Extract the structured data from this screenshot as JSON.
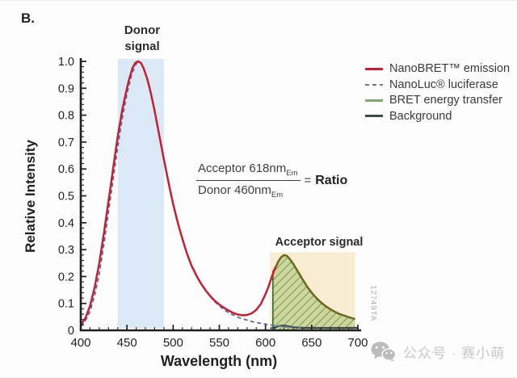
{
  "panel_label": "B.",
  "colors": {
    "axis": "#231f20",
    "emission_red": "#c32032",
    "nanoluc_dash": "#5c6d9c",
    "bret_green": "#7fa96b",
    "background_line": "#3c4a4e",
    "donor_band": "#dbe8f6",
    "acceptor_band": "#f8ecd3",
    "hatch_bg": "#ccd79f",
    "hatch_line": "#7d9747",
    "bret_outline": "#6e6c24",
    "bret_vertical": "#2f6b33"
  },
  "chart_data": {
    "type": "line",
    "xlabel": "Wavelength (nm)",
    "ylabel": "Relative Intensity",
    "xlim": [
      400,
      700
    ],
    "ylim": [
      0,
      1.0
    ],
    "x_major_ticks": [
      400,
      450,
      500,
      550,
      600,
      650,
      700
    ],
    "x_minor_step": 10,
    "y_ticks": [
      {
        "v": 1.0,
        "label": "1.0"
      },
      {
        "v": 0.9,
        "label": "0.9"
      },
      {
        "v": 0.8,
        "label": "0.8"
      },
      {
        "v": 0.7,
        "label": "0.7"
      },
      {
        "v": 0.6,
        "label": "0.6"
      },
      {
        "v": 0.5,
        "label": "0.5"
      },
      {
        "v": 0.4,
        "label": "0.4"
      },
      {
        "v": 0.3,
        "label": "0.3"
      },
      {
        "v": 0.2,
        "label": "0.2"
      },
      {
        "v": 0.1,
        "label": "0.1"
      },
      {
        "v": 0,
        "label": "0"
      }
    ],
    "y_minor_step": 0.02,
    "bands": [
      {
        "name": "donor-signal",
        "label": "Donor signal",
        "x0": 440,
        "x1": 490,
        "y_top": 1.0
      },
      {
        "name": "acceptor-signal",
        "label": "Acceptor signal",
        "x0": 605,
        "x1": 697,
        "y_top": 0.29
      }
    ],
    "bret_region_start_nm": 608,
    "series": [
      {
        "name": "NanoBRET™ emission",
        "style": "solid",
        "points": [
          [
            400,
            0.02
          ],
          [
            405,
            0.045
          ],
          [
            410,
            0.09
          ],
          [
            415,
            0.16
          ],
          [
            420,
            0.25
          ],
          [
            425,
            0.36
          ],
          [
            430,
            0.48
          ],
          [
            435,
            0.6
          ],
          [
            440,
            0.72
          ],
          [
            445,
            0.82
          ],
          [
            448,
            0.87
          ],
          [
            452,
            0.93
          ],
          [
            456,
            0.975
          ],
          [
            459,
            0.995
          ],
          [
            462,
            1.0
          ],
          [
            465,
            0.995
          ],
          [
            468,
            0.975
          ],
          [
            472,
            0.935
          ],
          [
            476,
            0.88
          ],
          [
            480,
            0.815
          ],
          [
            485,
            0.725
          ],
          [
            490,
            0.635
          ],
          [
            495,
            0.55
          ],
          [
            500,
            0.47
          ],
          [
            505,
            0.4
          ],
          [
            510,
            0.34
          ],
          [
            515,
            0.285
          ],
          [
            520,
            0.24
          ],
          [
            525,
            0.205
          ],
          [
            530,
            0.175
          ],
          [
            535,
            0.15
          ],
          [
            540,
            0.128
          ],
          [
            545,
            0.11
          ],
          [
            550,
            0.096
          ],
          [
            555,
            0.084
          ],
          [
            560,
            0.074
          ],
          [
            565,
            0.065
          ],
          [
            570,
            0.059
          ],
          [
            575,
            0.056
          ],
          [
            580,
            0.057
          ],
          [
            585,
            0.063
          ],
          [
            590,
            0.076
          ],
          [
            595,
            0.098
          ],
          [
            600,
            0.135
          ],
          [
            603,
            0.16
          ],
          [
            606,
            0.19
          ],
          [
            609,
            0.22
          ],
          [
            611,
            0.235
          ]
        ]
      },
      {
        "name": "NanoLuc® luciferase",
        "style": "dashed",
        "points": [
          [
            400,
            0.015
          ],
          [
            405,
            0.035
          ],
          [
            410,
            0.07
          ],
          [
            415,
            0.13
          ],
          [
            420,
            0.21
          ],
          [
            425,
            0.32
          ],
          [
            430,
            0.44
          ],
          [
            435,
            0.56
          ],
          [
            440,
            0.68
          ],
          [
            445,
            0.79
          ],
          [
            450,
            0.88
          ],
          [
            455,
            0.95
          ],
          [
            459,
            0.985
          ],
          [
            462,
            1.0
          ],
          [
            465,
            0.995
          ],
          [
            468,
            0.975
          ],
          [
            472,
            0.935
          ],
          [
            476,
            0.88
          ],
          [
            480,
            0.815
          ],
          [
            485,
            0.725
          ],
          [
            490,
            0.635
          ],
          [
            495,
            0.55
          ],
          [
            500,
            0.47
          ],
          [
            505,
            0.4
          ],
          [
            510,
            0.34
          ],
          [
            515,
            0.285
          ],
          [
            520,
            0.24
          ],
          [
            525,
            0.205
          ],
          [
            530,
            0.175
          ],
          [
            535,
            0.149
          ],
          [
            540,
            0.126
          ],
          [
            545,
            0.107
          ],
          [
            550,
            0.091
          ],
          [
            555,
            0.077
          ],
          [
            560,
            0.066
          ],
          [
            565,
            0.057
          ],
          [
            570,
            0.049
          ],
          [
            575,
            0.043
          ],
          [
            580,
            0.038
          ],
          [
            585,
            0.033
          ],
          [
            590,
            0.029
          ],
          [
            595,
            0.026
          ],
          [
            600,
            0.023
          ],
          [
            605,
            0.02
          ],
          [
            610,
            0.018
          ],
          [
            615,
            0.016
          ],
          [
            620,
            0.014
          ],
          [
            625,
            0.012
          ],
          [
            630,
            0.011
          ],
          [
            638,
            0.009
          ]
        ]
      },
      {
        "name": "BRET energy transfer",
        "style": "area-hatch",
        "points": [
          [
            608,
            0.215
          ],
          [
            611,
            0.235
          ],
          [
            614,
            0.257
          ],
          [
            617,
            0.272
          ],
          [
            620,
            0.28
          ],
          [
            623,
            0.277
          ],
          [
            626,
            0.266
          ],
          [
            630,
            0.247
          ],
          [
            635,
            0.219
          ],
          [
            640,
            0.19
          ],
          [
            645,
            0.163
          ],
          [
            650,
            0.14
          ],
          [
            655,
            0.12
          ],
          [
            660,
            0.104
          ],
          [
            665,
            0.09
          ],
          [
            670,
            0.079
          ],
          [
            675,
            0.069
          ],
          [
            680,
            0.061
          ],
          [
            685,
            0.055
          ],
          [
            690,
            0.049
          ],
          [
            697,
            0.042
          ]
        ]
      },
      {
        "name": "Background",
        "style": "solid-dark",
        "points": [
          [
            606,
            0.008
          ],
          [
            610,
            0.01
          ],
          [
            613,
            0.014
          ],
          [
            616,
            0.017
          ],
          [
            619,
            0.018
          ],
          [
            622,
            0.017
          ],
          [
            626,
            0.014
          ],
          [
            630,
            0.012
          ],
          [
            636,
            0.01
          ],
          [
            645,
            0.009
          ],
          [
            660,
            0.009
          ],
          [
            680,
            0.009
          ],
          [
            700,
            0.009
          ]
        ]
      }
    ],
    "legend": {
      "position": "top-right",
      "items": [
        {
          "label": "NanoBRET™ emission",
          "swatch": "solid",
          "color": "#c32032"
        },
        {
          "label": "NanoLuc® luciferase",
          "swatch": "dashed",
          "color": "#6b7890"
        },
        {
          "label": "BRET energy transfer",
          "swatch": "solid",
          "color": "#7fa96b"
        },
        {
          "label": "Background",
          "swatch": "solid",
          "color": "#3c4a4e"
        }
      ]
    },
    "annotation": {
      "numerator": "Acceptor 618nm",
      "numerator_sub": "Em",
      "denominator": "Donor 460nm",
      "denominator_sub": "Em",
      "equals": "=",
      "result": "Ratio"
    }
  },
  "watermark": "12749TA",
  "footer": {
    "wechat_label": "公众号 · 赛小萌"
  }
}
